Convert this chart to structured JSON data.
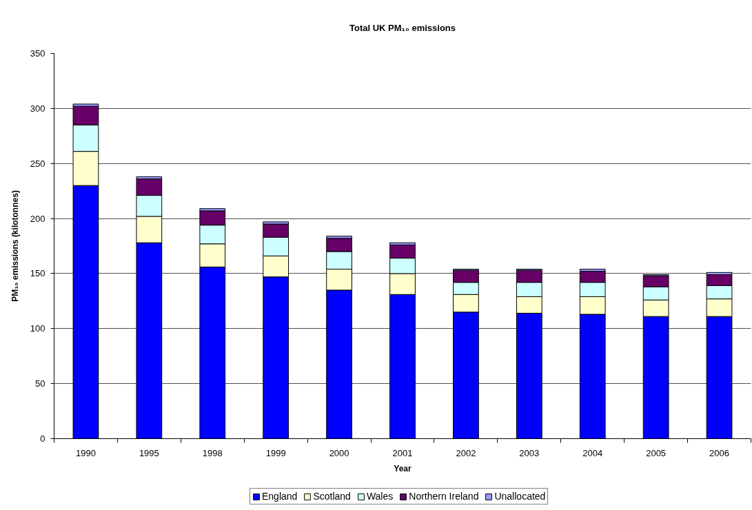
{
  "chart_data": {
    "type": "bar",
    "title": "Total UK PM₁₀ emissions",
    "xlabel": "Year",
    "ylabel": "PM₁₀ emissions (kilotonnes)",
    "categories": [
      "1990",
      "1995",
      "1998",
      "1999",
      "2000",
      "2001",
      "2002",
      "2003",
      "2004",
      "2005",
      "2006"
    ],
    "stacked": true,
    "ylim": [
      0,
      350
    ],
    "yticks": [
      0,
      50,
      100,
      150,
      200,
      250,
      300,
      350
    ],
    "grid": "y",
    "legend": "bottom",
    "series": [
      {
        "name": "England",
        "color": "#0000ff",
        "values": [
          230,
          178,
          156,
          147,
          135,
          131,
          115,
          114,
          113,
          111,
          111
        ]
      },
      {
        "name": "Scotland",
        "color": "#ffffcc",
        "values": [
          31,
          24,
          21,
          19,
          19,
          19,
          16,
          15,
          16,
          15,
          16
        ]
      },
      {
        "name": "Wales",
        "color": "#ccffff",
        "values": [
          24,
          19,
          17,
          17,
          16,
          14,
          11,
          13,
          13,
          12,
          12
        ]
      },
      {
        "name": "Northern Ireland",
        "color": "#660066",
        "values": [
          17,
          15,
          13,
          12,
          12,
          12,
          11,
          11,
          10,
          10,
          10
        ]
      },
      {
        "name": "Unallocated",
        "color": "#9999ff",
        "values": [
          2,
          2,
          2,
          2,
          2,
          2,
          1,
          1,
          2,
          1,
          2
        ]
      }
    ]
  }
}
